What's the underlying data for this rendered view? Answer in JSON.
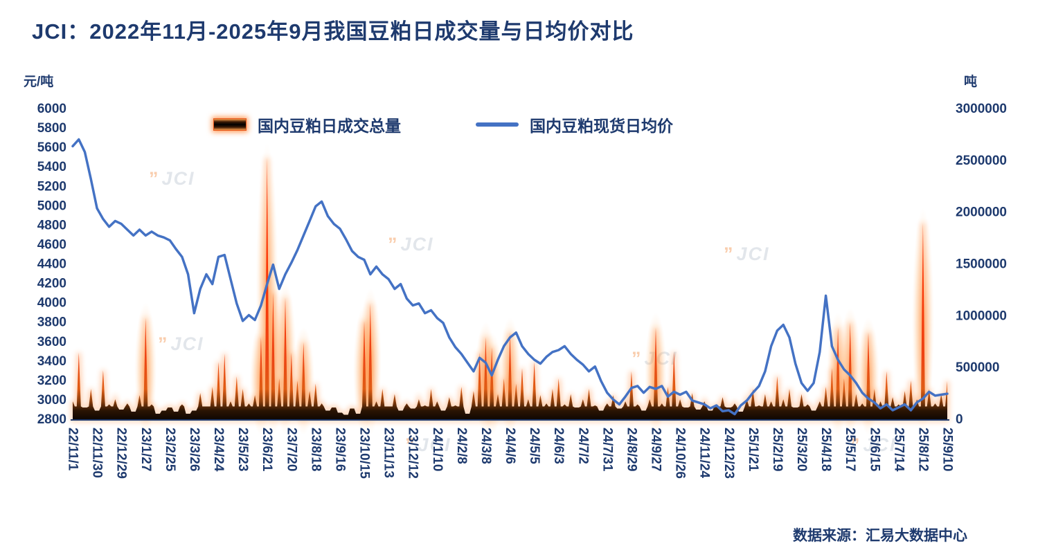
{
  "header": {
    "title": "JCI：2022年11月-2025年9月我国豆粕日成交量与日均价对比"
  },
  "units": {
    "left": "元/吨",
    "right": "吨"
  },
  "legend": {
    "volume": "国内豆粕日成交总量",
    "price": "国内豆粕现货日均价"
  },
  "source": "数据来源：汇易大数据中心",
  "watermark": {
    "mark": "”",
    "text": "JCI"
  },
  "colors": {
    "navy_text": "#1e3a6e",
    "line_blue": "#4472c4",
    "bar_dark": "#140a02",
    "bar_orange": "#e8491c",
    "bar_red": "#ff2a00",
    "glow_orange": "#ff7d26"
  },
  "chart_data": {
    "type": "combo",
    "title": "JCI：2022年11月-2025年9月我国豆粕日成交量与日均价对比",
    "xlabel": "",
    "left_axis": {
      "label": "元/吨",
      "min": 2800,
      "max": 6000,
      "step": 200,
      "ticks": [
        "6000",
        "5800",
        "5600",
        "5400",
        "5200",
        "5000",
        "4800",
        "4600",
        "4400",
        "4200",
        "4000",
        "3800",
        "3600",
        "3400",
        "3200",
        "3000",
        "2800"
      ]
    },
    "right_axis": {
      "label": "吨",
      "min": 0,
      "max": 3000000,
      "step": 500000,
      "ticks": [
        "3000000",
        "2500000",
        "2000000",
        "1500000",
        "1000000",
        "500000",
        "0"
      ]
    },
    "grid": false,
    "legend_position": "top-inside",
    "x_tick_labels": [
      "22/11/1",
      "22/11/30",
      "22/12/29",
      "23/1/27",
      "23/2/25",
      "23/3/26",
      "23/4/24",
      "23/5/23",
      "23/6/21",
      "23/7/20",
      "23/8/18",
      "23/9/16",
      "23/10/15",
      "23/11/13",
      "23/12/12",
      "24/1/10",
      "24/2/8",
      "24/3/8",
      "24/4/6",
      "24/5/5",
      "24/6/3",
      "24/7/2",
      "24/7/31",
      "24/8/29",
      "24/9/27",
      "24/10/26",
      "24/11/24",
      "24/12/23",
      "25/1/21",
      "25/2/19",
      "25/3/20",
      "25/4/18",
      "25/5/17",
      "25/6/15",
      "25/7/14",
      "25/8/12",
      "25/9/10"
    ],
    "samples_per_label_interval": 4,
    "series": [
      {
        "name": "国内豆粕日成交总量",
        "type": "bar",
        "axis": "right",
        "values": [
          180000,
          650000,
          120000,
          300000,
          90000,
          480000,
          150000,
          200000,
          100000,
          160000,
          80000,
          240000,
          985000,
          150000,
          60000,
          90000,
          120000,
          80000,
          150000,
          60000,
          90000,
          260000,
          130000,
          320000,
          560000,
          640000,
          180000,
          420000,
          300000,
          160000,
          240000,
          800000,
          2530000,
          1230000,
          400000,
          1180000,
          650000,
          380000,
          750000,
          280000,
          350000,
          160000,
          90000,
          120000,
          70000,
          50000,
          110000,
          60000,
          956000,
          1125000,
          180000,
          300000,
          130000,
          250000,
          90000,
          160000,
          110000,
          200000,
          140000,
          300000,
          180000,
          90000,
          220000,
          140000,
          320000,
          60000,
          280000,
          650000,
          800000,
          700000,
          250000,
          400000,
          844000,
          350000,
          500000,
          200000,
          560000,
          240000,
          160000,
          300000,
          400000,
          150000,
          250000,
          120000,
          200000,
          300000,
          140000,
          90000,
          160000,
          240000,
          110000,
          180000,
          469000,
          150000,
          90000,
          200000,
          890000,
          160000,
          320000,
          656000,
          200000,
          120000,
          260000,
          100000,
          180000,
          90000,
          140000,
          220000,
          120000,
          160000,
          80000,
          200000,
          300000,
          140000,
          250000,
          180000,
          422000,
          200000,
          300000,
          120000,
          250000,
          150000,
          90000,
          180000,
          320000,
          500000,
          890000,
          400000,
          940000,
          250000,
          160000,
          844000,
          300000,
          180000,
          469000,
          220000,
          150000,
          280000,
          380000,
          200000,
          1903000,
          300000,
          160000,
          250000,
          375000
        ]
      },
      {
        "name": "国内豆粕现货日均价",
        "type": "line",
        "axis": "left",
        "values": [
          5620,
          5690,
          5560,
          5280,
          4980,
          4870,
          4790,
          4850,
          4820,
          4760,
          4700,
          4760,
          4700,
          4740,
          4700,
          4680,
          4650,
          4560,
          4480,
          4300,
          3900,
          4150,
          4300,
          4200,
          4480,
          4500,
          4250,
          4000,
          3820,
          3880,
          3830,
          3980,
          4200,
          4400,
          4150,
          4300,
          4420,
          4550,
          4700,
          4850,
          5000,
          5050,
          4900,
          4820,
          4770,
          4660,
          4540,
          4480,
          4450,
          4300,
          4380,
          4300,
          4250,
          4150,
          4200,
          4050,
          3980,
          4000,
          3900,
          3930,
          3850,
          3800,
          3650,
          3550,
          3480,
          3390,
          3300,
          3440,
          3390,
          3260,
          3420,
          3560,
          3650,
          3700,
          3560,
          3480,
          3420,
          3380,
          3450,
          3500,
          3520,
          3560,
          3480,
          3420,
          3370,
          3300,
          3350,
          3200,
          3080,
          3010,
          2960,
          3040,
          3130,
          3150,
          3080,
          3140,
          3120,
          3150,
          3040,
          3090,
          3060,
          3090,
          3000,
          2980,
          2960,
          2920,
          2950,
          2890,
          2900,
          2860,
          2950,
          3000,
          3080,
          3150,
          3300,
          3560,
          3720,
          3780,
          3650,
          3380,
          3180,
          3100,
          3180,
          3500,
          4080,
          3560,
          3420,
          3320,
          3260,
          3180,
          3080,
          3020,
          2980,
          2920,
          2960,
          2900,
          2930,
          2960,
          2900,
          2980,
          3020,
          3090,
          3050,
          3060,
          3070
        ]
      }
    ]
  }
}
